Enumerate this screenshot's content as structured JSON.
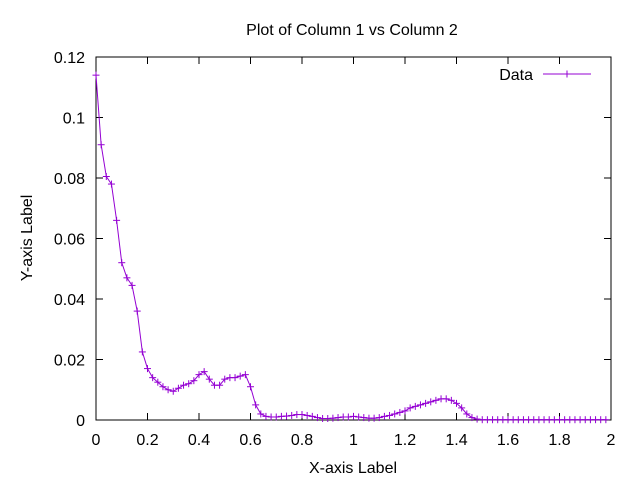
{
  "chart_data": {
    "type": "line",
    "title": "Plot of Column 1 vs Column 2",
    "xlabel": "X-axis Label",
    "ylabel": "Y-axis Label",
    "xlim": [
      0,
      2
    ],
    "ylim": [
      0,
      0.12
    ],
    "x_ticks": [
      0,
      0.2,
      0.4,
      0.6,
      0.8,
      1,
      1.2,
      1.4,
      1.6,
      1.8,
      2
    ],
    "x_tick_labels": [
      "0",
      "0.2",
      "0.4",
      "0.6",
      "0.8",
      "1",
      "1.2",
      "1.4",
      "1.6",
      "1.8",
      "2"
    ],
    "y_ticks": [
      0,
      0.02,
      0.04,
      0.06,
      0.08,
      0.1,
      0.12
    ],
    "y_tick_labels": [
      "0",
      "0.02",
      "0.04",
      "0.06",
      "0.08",
      "0.1",
      "0.12"
    ],
    "grid": false,
    "legend_position": "top-right",
    "series": [
      {
        "name": "Data",
        "color": "#9400d3",
        "marker": "plus",
        "x": [
          0,
          0.02,
          0.04,
          0.06,
          0.08,
          0.1,
          0.12,
          0.14,
          0.16,
          0.18,
          0.2,
          0.22,
          0.24,
          0.26,
          0.28,
          0.3,
          0.32,
          0.34,
          0.36,
          0.38,
          0.4,
          0.42,
          0.44,
          0.46,
          0.48,
          0.5,
          0.52,
          0.54,
          0.56,
          0.58,
          0.6,
          0.62,
          0.64,
          0.66,
          0.68,
          0.7,
          0.72,
          0.74,
          0.76,
          0.78,
          0.8,
          0.82,
          0.84,
          0.86,
          0.88,
          0.9,
          0.92,
          0.94,
          0.96,
          0.98,
          1.0,
          1.02,
          1.04,
          1.06,
          1.08,
          1.1,
          1.12,
          1.14,
          1.16,
          1.18,
          1.2,
          1.22,
          1.24,
          1.26,
          1.28,
          1.3,
          1.32,
          1.34,
          1.36,
          1.38,
          1.4,
          1.42,
          1.44,
          1.46,
          1.48,
          1.5,
          1.52,
          1.54,
          1.56,
          1.58,
          1.6,
          1.62,
          1.64,
          1.66,
          1.68,
          1.7,
          1.72,
          1.74,
          1.76,
          1.78,
          1.8,
          1.82,
          1.84,
          1.86,
          1.88,
          1.9,
          1.92,
          1.94,
          1.96,
          1.98
        ],
        "y": [
          0.114,
          0.091,
          0.0805,
          0.078,
          0.066,
          0.052,
          0.047,
          0.0445,
          0.036,
          0.0225,
          0.017,
          0.014,
          0.0125,
          0.011,
          0.01,
          0.0095,
          0.0105,
          0.0115,
          0.012,
          0.013,
          0.015,
          0.016,
          0.0135,
          0.0115,
          0.0115,
          0.0135,
          0.014,
          0.014,
          0.0145,
          0.015,
          0.011,
          0.005,
          0.002,
          0.0012,
          0.001,
          0.001,
          0.0012,
          0.0013,
          0.0015,
          0.0018,
          0.0018,
          0.0015,
          0.0012,
          0.0008,
          0.0005,
          0.0005,
          0.0006,
          0.0008,
          0.001,
          0.001,
          0.0012,
          0.001,
          0.0008,
          0.0006,
          0.0006,
          0.0008,
          0.0012,
          0.0015,
          0.002,
          0.0025,
          0.003,
          0.004,
          0.0045,
          0.005,
          0.0055,
          0.006,
          0.0065,
          0.007,
          0.007,
          0.0065,
          0.0055,
          0.004,
          0.002,
          0.0008,
          0.0003,
          0.0001,
          0.0001,
          0.0001,
          0.0001,
          0.0001,
          0.0001,
          0.0001,
          0.0001,
          0.0001,
          0.0001,
          0.0001,
          0.0001,
          0.0001,
          0.0001,
          0.0001,
          0.0001,
          0.0001,
          0.0001,
          0.0001,
          0.0001,
          0.0001,
          0.0001,
          0.0001,
          0.0001,
          0.0001
        ]
      }
    ]
  }
}
